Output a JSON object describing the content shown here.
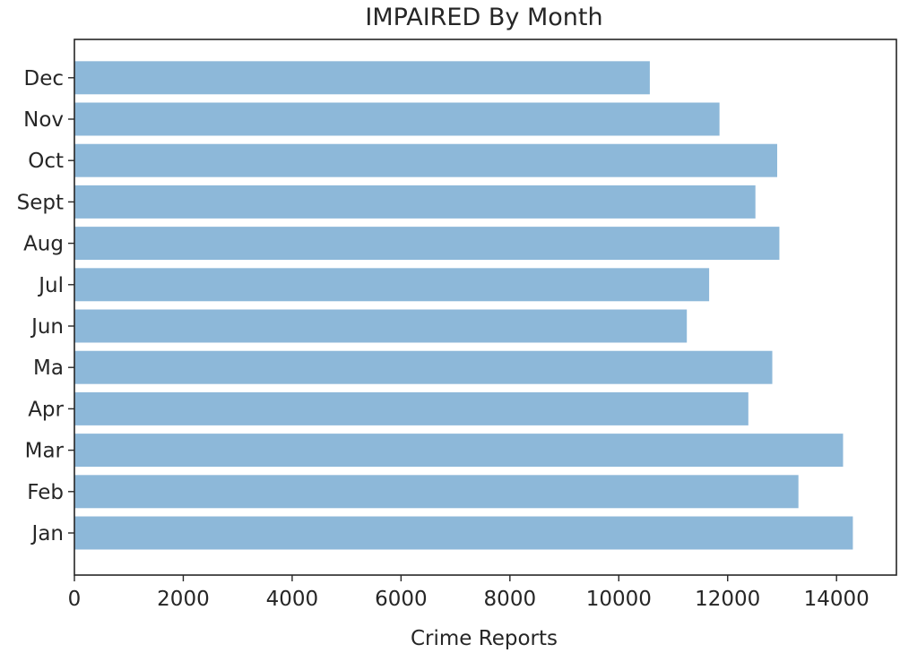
{
  "chart_data": {
    "type": "bar",
    "orientation": "horizontal",
    "title": "IMPAIRED By Month",
    "xlabel": "Crime Reports",
    "ylabel": "",
    "categories": [
      "Jan",
      "Feb",
      "Mar",
      "Ma",
      "Apr",
      "Jun",
      "Jul",
      "Aug",
      "Sept",
      "Oct",
      "Nov",
      "Dec"
    ],
    "category_order_bottom_to_top": [
      "Jan",
      "Feb",
      "Mar",
      "Apr",
      "Ma",
      "Jun",
      "Jul",
      "Aug",
      "Sept",
      "Oct",
      "Nov",
      "Dec"
    ],
    "values_by_label": {
      "Jan": 14300,
      "Feb": 13300,
      "Mar": 14120,
      "Apr": 12380,
      "Ma": 12820,
      "Jun": 11250,
      "Jul": 11660,
      "Aug": 12950,
      "Sept": 12510,
      "Oct": 12910,
      "Nov": 11850,
      "Dec": 10570
    },
    "xlim": [
      0,
      15100
    ],
    "xticks": [
      0,
      2000,
      4000,
      6000,
      8000,
      10000,
      12000,
      14000
    ],
    "bar_color": "#8db8d9",
    "grid": false,
    "legend": "none"
  }
}
